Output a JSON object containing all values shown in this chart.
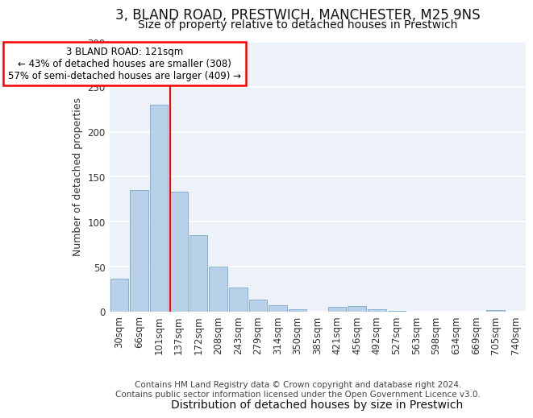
{
  "title1": "3, BLAND ROAD, PRESTWICH, MANCHESTER, M25 9NS",
  "title2": "Size of property relative to detached houses in Prestwich",
  "xlabel": "Distribution of detached houses by size in Prestwich",
  "ylabel": "Number of detached properties",
  "footnote": "Contains HM Land Registry data © Crown copyright and database right 2024.\nContains public sector information licensed under the Open Government Licence v3.0.",
  "categories": [
    "30sqm",
    "66sqm",
    "101sqm",
    "137sqm",
    "172sqm",
    "208sqm",
    "243sqm",
    "279sqm",
    "314sqm",
    "350sqm",
    "385sqm",
    "421sqm",
    "456sqm",
    "492sqm",
    "527sqm",
    "563sqm",
    "598sqm",
    "634sqm",
    "669sqm",
    "705sqm",
    "740sqm"
  ],
  "values": [
    37,
    135,
    230,
    133,
    85,
    50,
    27,
    13,
    7,
    3,
    0,
    5,
    6,
    3,
    1,
    0,
    0,
    0,
    0,
    2,
    0
  ],
  "bar_color": "#b8d0e8",
  "bar_edge_color": "#7aaace",
  "highlight_label": "3 BLAND ROAD: 121sqm",
  "annotation_line1": "← 43% of detached houses are smaller (308)",
  "annotation_line2": "57% of semi-detached houses are larger (409) →",
  "vline_color": "red",
  "ylim": [
    0,
    300
  ],
  "yticks": [
    0,
    50,
    100,
    150,
    200,
    250,
    300
  ],
  "background_color": "#edf2f9",
  "grid_color": "white",
  "title1_fontsize": 12,
  "title2_fontsize": 10,
  "xlabel_fontsize": 10,
  "ylabel_fontsize": 9,
  "tick_fontsize": 8.5,
  "annotation_fontsize": 8.5,
  "footnote_fontsize": 7.5
}
